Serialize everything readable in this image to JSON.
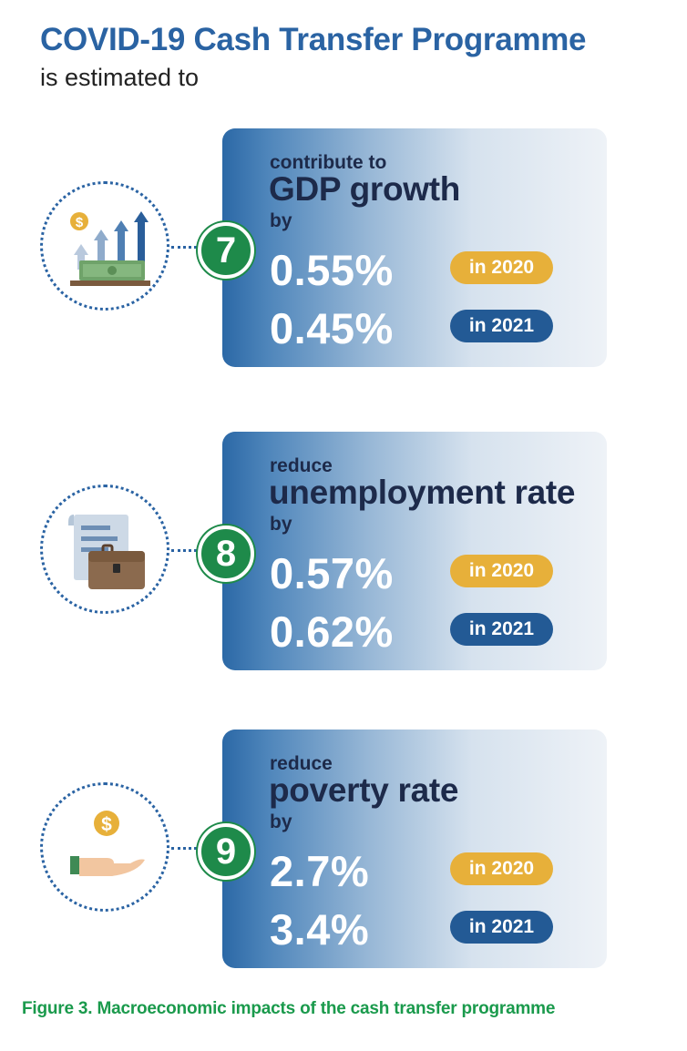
{
  "header": {
    "title": "COVID-19 Cash Transfer Programme",
    "subtitle": "is estimated to"
  },
  "items": [
    {
      "number": "7",
      "icon": "gdp-growth-icon",
      "verb": "contribute to",
      "metric": "GDP growth",
      "by": "by",
      "values": [
        {
          "value": "0.55%",
          "year": "in 2020"
        },
        {
          "value": "0.45%",
          "year": "in 2021"
        }
      ]
    },
    {
      "number": "8",
      "icon": "briefcase-document-icon",
      "verb": "reduce",
      "metric": "unemployment rate",
      "by": "by",
      "values": [
        {
          "value": "0.57%",
          "year": "in 2020"
        },
        {
          "value": "0.62%",
          "year": "in 2021"
        }
      ]
    },
    {
      "number": "9",
      "icon": "hand-coin-icon",
      "verb": "reduce",
      "metric": "poverty rate",
      "by": "by",
      "values": [
        {
          "value": "2.7%",
          "year": "in 2020"
        },
        {
          "value": "3.4%",
          "year": "in 2021"
        }
      ]
    }
  ],
  "colors": {
    "title_blue": "#2a63a3",
    "badge_green": "#1e8a4a",
    "year_2020": "#e7b03a",
    "year_2021": "#235a95",
    "caption_green": "#1a9a4c"
  },
  "caption": "Figure 3. Macroeconomic impacts of the cash transfer programme"
}
